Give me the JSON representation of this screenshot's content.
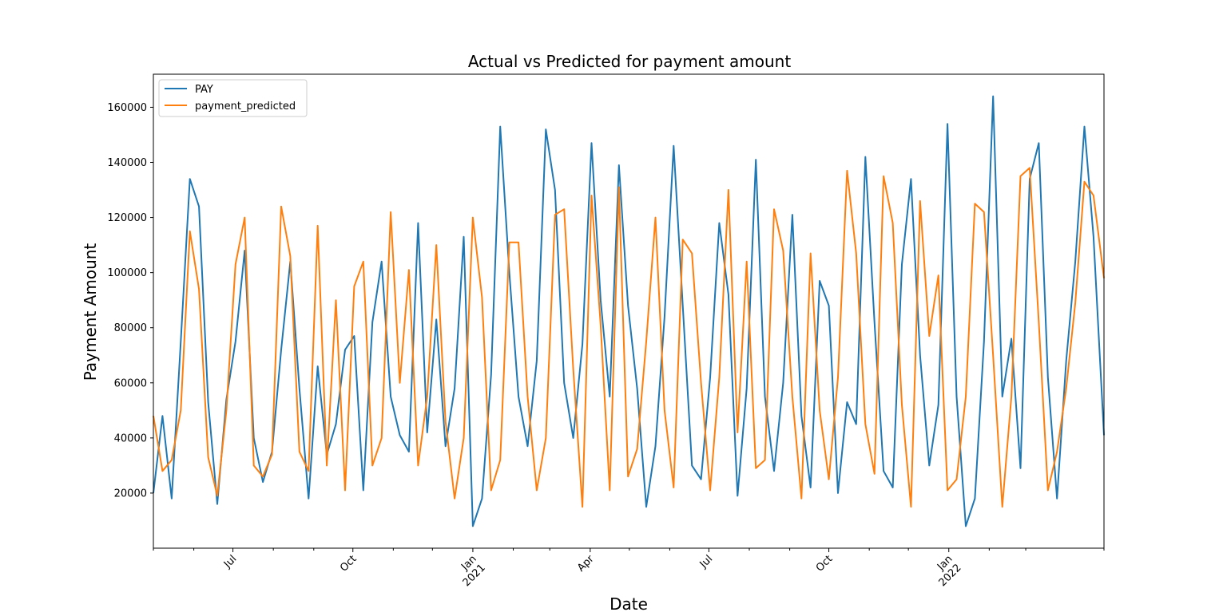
{
  "chart_data": {
    "type": "line",
    "title": "Actual vs Predicted for payment amount",
    "xlabel": "Date",
    "ylabel": "Payment Amount",
    "xlim": [
      "2020-05-01",
      "2022-04-30"
    ],
    "ylim": [
      0,
      172000
    ],
    "grid": false,
    "legend": "top-left",
    "y_ticks": [
      20000,
      40000,
      60000,
      80000,
      100000,
      120000,
      140000,
      160000
    ],
    "y_tick_labels": [
      "20000",
      "40000",
      "60000",
      "80000",
      "100000",
      "120000",
      "140000",
      "160000"
    ],
    "x_major_ticks": [
      {
        "date": "2020-07-01",
        "label": "Jul",
        "year": ""
      },
      {
        "date": "2020-10-01",
        "label": "Oct",
        "year": ""
      },
      {
        "date": "2021-01-01",
        "label": "Jan",
        "year": "2021"
      },
      {
        "date": "2021-04-01",
        "label": "Apr",
        "year": ""
      },
      {
        "date": "2021-07-01",
        "label": "Jul",
        "year": ""
      },
      {
        "date": "2021-10-01",
        "label": "Oct",
        "year": ""
      },
      {
        "date": "2022-01-01",
        "label": "Jan",
        "year": "2022"
      }
    ],
    "x_minor_ticks": [
      "2020-05-01",
      "2020-06-01",
      "2020-08-01",
      "2020-09-01",
      "2020-11-01",
      "2020-12-01",
      "2021-02-01",
      "2021-03-01",
      "2021-05-01",
      "2021-06-01",
      "2021-08-01",
      "2021-09-01",
      "2021-11-01",
      "2021-12-01",
      "2022-02-01",
      "2022-03-01",
      "2022-04-30"
    ],
    "series": [
      {
        "name": "PAY",
        "color": "#1f77b4",
        "x": [
          "2020-05-01",
          "2020-05-08",
          "2020-05-15",
          "2020-05-22",
          "2020-05-29",
          "2020-06-05",
          "2020-06-12",
          "2020-06-19",
          "2020-06-26",
          "2020-07-03",
          "2020-07-10",
          "2020-07-17",
          "2020-07-24",
          "2020-07-31",
          "2020-08-07",
          "2020-08-14",
          "2020-08-21",
          "2020-08-28",
          "2020-09-04",
          "2020-09-11",
          "2020-09-18",
          "2020-09-25",
          "2020-10-02",
          "2020-10-09",
          "2020-10-16",
          "2020-10-23",
          "2020-10-30",
          "2020-11-06",
          "2020-11-13",
          "2020-11-20",
          "2020-11-27",
          "2020-12-04",
          "2020-12-11",
          "2020-12-18",
          "2020-12-25",
          "2021-01-01",
          "2021-01-08",
          "2021-01-15",
          "2021-01-22",
          "2021-01-29",
          "2021-02-05",
          "2021-02-12",
          "2021-02-19",
          "2021-02-26",
          "2021-03-05",
          "2021-03-12",
          "2021-03-19",
          "2021-03-26",
          "2021-04-02",
          "2021-04-09",
          "2021-04-16",
          "2021-04-23",
          "2021-04-30",
          "2021-05-07",
          "2021-05-14",
          "2021-05-21",
          "2021-05-28",
          "2021-06-04",
          "2021-06-11",
          "2021-06-18",
          "2021-06-25",
          "2021-07-02",
          "2021-07-09",
          "2021-07-16",
          "2021-07-23",
          "2021-07-30",
          "2021-08-06",
          "2021-08-13",
          "2021-08-20",
          "2021-08-27",
          "2021-09-03",
          "2021-09-10",
          "2021-09-17",
          "2021-09-24",
          "2021-10-01",
          "2021-10-08",
          "2021-10-15",
          "2021-10-22",
          "2021-10-29",
          "2021-11-05",
          "2021-11-12",
          "2021-11-19",
          "2021-11-26",
          "2021-12-03",
          "2021-12-10",
          "2021-12-17",
          "2021-12-24",
          "2021-12-31",
          "2022-01-07",
          "2022-01-14",
          "2022-01-21",
          "2022-01-28",
          "2022-02-04",
          "2022-02-11",
          "2022-02-18",
          "2022-02-25",
          "2022-03-04",
          "2022-03-11",
          "2022-03-18",
          "2022-03-25",
          "2022-04-01",
          "2022-04-08",
          "2022-04-15",
          "2022-04-22",
          "2022-04-30"
        ],
        "values": [
          20000,
          48000,
          18000,
          75000,
          134000,
          124000,
          53000,
          16000,
          54000,
          75000,
          108000,
          40000,
          24000,
          35000,
          72000,
          104000,
          58000,
          18000,
          66000,
          34000,
          45000,
          72000,
          77000,
          21000,
          82000,
          104000,
          55000,
          41000,
          35000,
          118000,
          42000,
          83000,
          37000,
          58000,
          113000,
          8000,
          18000,
          63000,
          153000,
          100000,
          55000,
          37000,
          68000,
          152000,
          130000,
          60000,
          40000,
          74000,
          147000,
          90000,
          55000,
          139000,
          88000,
          58000,
          15000,
          37000,
          84000,
          146000,
          88000,
          30000,
          25000,
          62000,
          118000,
          92000,
          19000,
          58000,
          141000,
          55000,
          28000,
          60000,
          121000,
          48000,
          22000,
          97000,
          88000,
          20000,
          53000,
          45000,
          142000,
          82000,
          28000,
          22000,
          103000,
          134000,
          70000,
          30000,
          52000,
          154000,
          55000,
          8000,
          18000,
          75000,
          164000,
          55000,
          76000,
          29000,
          134000,
          147000,
          62000,
          18000,
          68000,
          104000,
          153000,
          113000,
          41000
        ],
        "points": []
      },
      {
        "name": "payment_predicted",
        "color": "#ff7f0e",
        "x": [
          "2020-05-01",
          "2020-05-08",
          "2020-05-15",
          "2020-05-22",
          "2020-05-29",
          "2020-06-05",
          "2020-06-12",
          "2020-06-19",
          "2020-06-26",
          "2020-07-03",
          "2020-07-10",
          "2020-07-17",
          "2020-07-24",
          "2020-07-31",
          "2020-08-07",
          "2020-08-14",
          "2020-08-21",
          "2020-08-28",
          "2020-09-04",
          "2020-09-11",
          "2020-09-18",
          "2020-09-25",
          "2020-10-02",
          "2020-10-09",
          "2020-10-16",
          "2020-10-23",
          "2020-10-30",
          "2020-11-06",
          "2020-11-13",
          "2020-11-20",
          "2020-11-27",
          "2020-12-04",
          "2020-12-11",
          "2020-12-18",
          "2020-12-25",
          "2021-01-01",
          "2021-01-08",
          "2021-01-15",
          "2021-01-22",
          "2021-01-29",
          "2021-02-05",
          "2021-02-12",
          "2021-02-19",
          "2021-02-26",
          "2021-03-05",
          "2021-03-12",
          "2021-03-19",
          "2021-03-26",
          "2021-04-02",
          "2021-04-09",
          "2021-04-16",
          "2021-04-23",
          "2021-04-30",
          "2021-05-07",
          "2021-05-14",
          "2021-05-21",
          "2021-05-28",
          "2021-06-04",
          "2021-06-11",
          "2021-06-18",
          "2021-06-25",
          "2021-07-02",
          "2021-07-09",
          "2021-07-16",
          "2021-07-23",
          "2021-07-30",
          "2021-08-06",
          "2021-08-13",
          "2021-08-20",
          "2021-08-27",
          "2021-09-03",
          "2021-09-10",
          "2021-09-17",
          "2021-09-24",
          "2021-10-01",
          "2021-10-08",
          "2021-10-15",
          "2021-10-22",
          "2021-10-29",
          "2021-11-05",
          "2021-11-12",
          "2021-11-19",
          "2021-11-26",
          "2021-12-03",
          "2021-12-10",
          "2021-12-17",
          "2021-12-24",
          "2021-12-31",
          "2022-01-07",
          "2022-01-14",
          "2022-01-21",
          "2022-01-28",
          "2022-02-04",
          "2022-02-11",
          "2022-02-18",
          "2022-02-25",
          "2022-03-04",
          "2022-03-11",
          "2022-03-18",
          "2022-03-25",
          "2022-04-01",
          "2022-04-08",
          "2022-04-15",
          "2022-04-22",
          "2022-04-30"
        ],
        "values": [
          48000,
          28000,
          32000,
          50000,
          115000,
          94000,
          33000,
          19000,
          50000,
          103000,
          120000,
          30000,
          26000,
          34000,
          124000,
          106000,
          35000,
          28000,
          117000,
          30000,
          90000,
          21000,
          95000,
          104000,
          30000,
          40000,
          122000,
          60000,
          101000,
          30000,
          55000,
          110000,
          46000,
          18000,
          40000,
          120000,
          91000,
          21000,
          32000,
          111000,
          111000,
          55000,
          21000,
          40000,
          121000,
          123000,
          65000,
          15000,
          128000,
          81000,
          21000,
          131000,
          26000,
          36000,
          75000,
          120000,
          50000,
          22000,
          112000,
          107000,
          60000,
          21000,
          62000,
          130000,
          42000,
          104000,
          29000,
          32000,
          123000,
          108000,
          55000,
          18000,
          107000,
          50000,
          25000,
          62000,
          137000,
          107000,
          45000,
          27000,
          135000,
          118000,
          52000,
          15000,
          126000,
          77000,
          99000,
          21000,
          25000,
          55000,
          125000,
          122000,
          70000,
          15000,
          55000,
          135000,
          138000,
          82000,
          21000,
          35000,
          58000,
          89000,
          133000,
          128000,
          98000
        ],
        "points": []
      }
    ]
  }
}
